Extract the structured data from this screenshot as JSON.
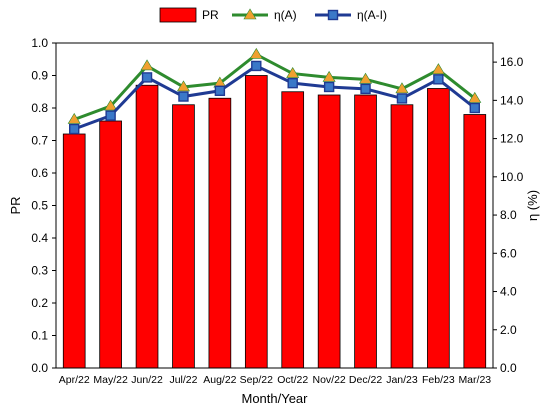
{
  "chart_data": {
    "type": "bar",
    "categories": [
      "Apr/22",
      "May/22",
      "Jun/22",
      "Jul/22",
      "Aug/22",
      "Sep/22",
      "Oct/22",
      "Nov/22",
      "Dec/22",
      "Jan/23",
      "Feb/23",
      "Mar/23"
    ],
    "series": [
      {
        "name": "PR",
        "type": "bar",
        "axis": "left",
        "color": "#ff0000",
        "values": [
          0.72,
          0.76,
          0.87,
          0.81,
          0.83,
          0.9,
          0.85,
          0.84,
          0.84,
          0.81,
          0.86,
          0.78
        ]
      },
      {
        "name": "η(A)",
        "type": "line",
        "axis": "right",
        "color": "#2e8b2e",
        "marker": "triangle",
        "marker_color": "#f0a030",
        "values": [
          13.0,
          13.7,
          15.8,
          14.7,
          14.9,
          16.4,
          15.4,
          15.2,
          15.1,
          14.6,
          15.6,
          14.1
        ]
      },
      {
        "name": "η(A-I)",
        "type": "line",
        "axis": "right",
        "color": "#1f3a93",
        "marker": "square",
        "marker_color": "#3a78c8",
        "values": [
          12.5,
          13.2,
          15.2,
          14.2,
          14.5,
          15.8,
          14.9,
          14.7,
          14.6,
          14.1,
          15.1,
          13.6
        ]
      }
    ],
    "xlabel": "Month/Year",
    "ylabel": "PR",
    "y2label": "η (%)",
    "ylim": [
      0.0,
      1.0
    ],
    "y2lim": [
      0.0,
      17.0
    ],
    "yticks": [
      "0.0",
      "0.1",
      "0.2",
      "0.3",
      "0.4",
      "0.5",
      "0.6",
      "0.7",
      "0.8",
      "0.9",
      "1.0"
    ],
    "y2ticks": [
      "0.0",
      "2.0",
      "4.0",
      "6.0",
      "8.0",
      "10.0",
      "12.0",
      "14.0",
      "16.0"
    ],
    "grid": false,
    "legend_position": "top-center"
  }
}
